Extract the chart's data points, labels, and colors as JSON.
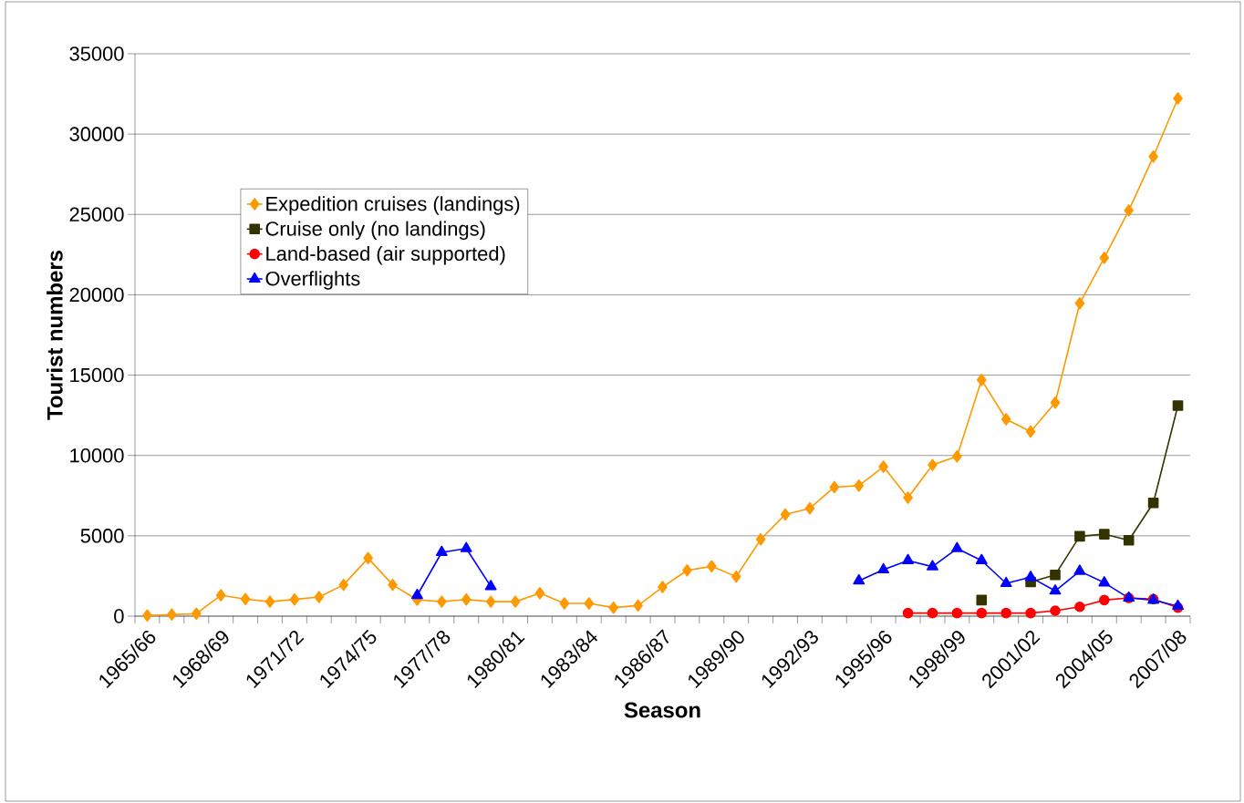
{
  "chart_data": {
    "type": "line",
    "xlabel": "Season",
    "ylabel": "Tourist numbers",
    "categories": [
      "1965/66",
      null,
      null,
      "1968/69",
      null,
      null,
      "1971/72",
      null,
      null,
      "1974/75",
      null,
      null,
      "1977/78",
      null,
      null,
      "1980/81",
      null,
      null,
      "1983/84",
      null,
      null,
      "1986/87",
      null,
      null,
      "1989/90",
      null,
      null,
      "1992/93",
      null,
      null,
      "1995/96",
      null,
      null,
      "1998/99",
      null,
      null,
      "2001/02",
      null,
      null,
      "2004/05",
      null,
      null,
      "2007/08"
    ],
    "series": [
      {
        "name": "Expedition cruises (landings)",
        "color": "#ff9900",
        "marker": "diamond",
        "values": [
          40,
          100,
          150,
          1300,
          1060,
          900,
          1040,
          1190,
          1950,
          3610,
          1950,
          1020,
          900,
          1040,
          900,
          900,
          1430,
          790,
          790,
          530,
          660,
          1810,
          2850,
          3100,
          2460,
          4780,
          6330,
          6710,
          8030,
          8120,
          9300,
          7370,
          9410,
          9940,
          14700,
          12250,
          11490,
          13290,
          19470,
          22300,
          25250,
          28600,
          32220
        ]
      },
      {
        "name": "Cruise only (no landings)",
        "color": "#333300",
        "marker": "square",
        "values": [
          null,
          null,
          null,
          null,
          null,
          null,
          null,
          null,
          null,
          null,
          null,
          null,
          null,
          null,
          null,
          null,
          null,
          null,
          null,
          null,
          null,
          null,
          null,
          null,
          null,
          null,
          null,
          null,
          null,
          null,
          null,
          null,
          null,
          null,
          1000,
          null,
          2130,
          2570,
          4970,
          5100,
          4720,
          7050,
          13100
        ]
      },
      {
        "name": "Land-based (air supported)",
        "color": "#ff0000",
        "marker": "circle",
        "values": [
          null,
          null,
          null,
          null,
          null,
          null,
          null,
          null,
          null,
          null,
          null,
          null,
          null,
          null,
          null,
          null,
          null,
          null,
          null,
          null,
          null,
          null,
          null,
          null,
          null,
          null,
          null,
          null,
          null,
          null,
          null,
          190,
          190,
          190,
          190,
          190,
          190,
          340,
          580,
          1000,
          1130,
          1060,
          530
        ]
      },
      {
        "name": "Overflights",
        "color": "#0000ff",
        "marker": "triangle",
        "values": [
          null,
          null,
          null,
          null,
          null,
          null,
          null,
          null,
          null,
          null,
          null,
          1290,
          3970,
          4210,
          1850,
          null,
          null,
          null,
          null,
          null,
          null,
          null,
          null,
          null,
          null,
          null,
          null,
          null,
          null,
          2200,
          2890,
          3460,
          3080,
          4210,
          3460,
          2040,
          2420,
          1570,
          2800,
          2080,
          1130,
          1000,
          620
        ]
      }
    ],
    "ylim": [
      0,
      35000
    ],
    "yticks": [
      0,
      5000,
      10000,
      15000,
      20000,
      25000,
      30000,
      35000
    ],
    "grid": "y",
    "legend": "top left",
    "line_style": "solid"
  }
}
